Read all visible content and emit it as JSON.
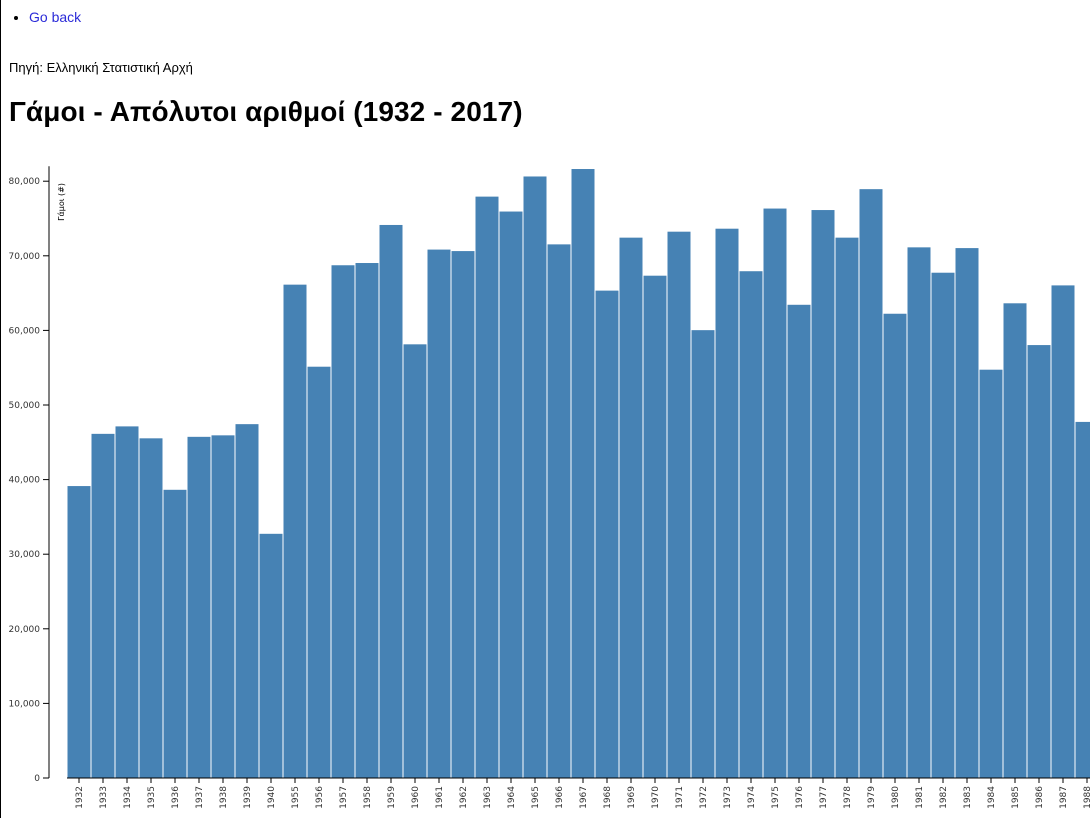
{
  "nav": {
    "back_label": "Go back"
  },
  "source": "Πηγή: Ελληνική Στατιστική Αρχή",
  "title": "Γάμοι - Απόλυτοι αριθμοί (1932 - 2017)",
  "chart_data": {
    "type": "bar",
    "ylabel": "Γάμοι (#)",
    "xlabel": "",
    "ylim": [
      0,
      82000
    ],
    "yticks": [
      0,
      10000,
      20000,
      30000,
      40000,
      50000,
      60000,
      70000,
      80000
    ],
    "ytick_labels": [
      "0",
      "10,000",
      "20,000",
      "30,000",
      "40,000",
      "50,000",
      "60,000",
      "70,000",
      "80,000"
    ],
    "color": "#4682b4",
    "grid": false,
    "categories": [
      "1932",
      "1933",
      "1934",
      "1935",
      "1936",
      "1937",
      "1938",
      "1939",
      "1940",
      "1955",
      "1956",
      "1957",
      "1958",
      "1959",
      "1960",
      "1961",
      "1962",
      "1963",
      "1964",
      "1965",
      "1966",
      "1967",
      "1968",
      "1969",
      "1970",
      "1971",
      "1972",
      "1973",
      "1974",
      "1975",
      "1976",
      "1977",
      "1978",
      "1979",
      "1980",
      "1981",
      "1982",
      "1983",
      "1984",
      "1985",
      "1986",
      "1987",
      "1988"
    ],
    "values": [
      39200,
      46200,
      47200,
      45600,
      38700,
      45800,
      46000,
      47500,
      32800,
      66200,
      55200,
      68800,
      69100,
      74200,
      58200,
      70900,
      70700,
      78000,
      76000,
      80700,
      71600,
      81700,
      65400,
      72500,
      67400,
      73300,
      60100,
      73700,
      68000,
      76400,
      63500,
      76200,
      72500,
      79000,
      62300,
      71200,
      67800,
      71100,
      54800,
      63700,
      58100,
      66100,
      47800
    ]
  }
}
